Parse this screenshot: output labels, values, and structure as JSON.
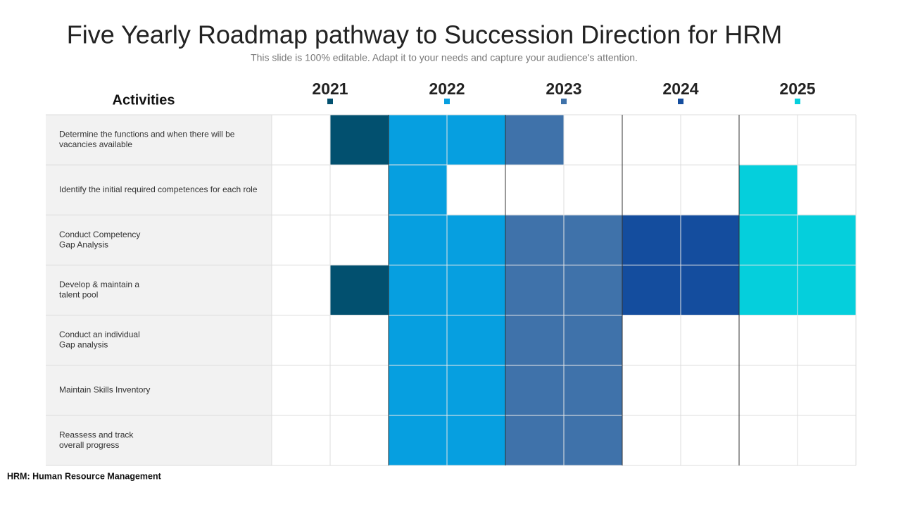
{
  "title": "Five Yearly Roadmap pathway to Succession Direction for HRM",
  "subtitle": "This slide is 100% editable. Adapt it to your needs and capture your audience's attention.",
  "activities_header": "Activities",
  "years": [
    {
      "label": "2021",
      "color": "#02506f"
    },
    {
      "label": "2022",
      "color": "#069fe0"
    },
    {
      "label": "2023",
      "color": "#3f72aa"
    },
    {
      "label": "2024",
      "color": "#144d9e"
    },
    {
      "label": "2025",
      "color": "#05cfdc"
    }
  ],
  "rows": [
    {
      "lines": [
        "Determine the functions and when there will be",
        "vacancies available"
      ]
    },
    {
      "lines": [
        "Identify the initial required competences for each role"
      ]
    },
    {
      "lines": [
        "Conduct Competency",
        "Gap Analysis"
      ]
    },
    {
      "lines": [
        "Develop & maintain a",
        "talent pool"
      ]
    },
    {
      "lines": [
        "Conduct an individual",
        "Gap analysis"
      ]
    },
    {
      "lines": [
        "Maintain Skills Inventory"
      ]
    },
    {
      "lines": [
        "Reassess and track",
        "overall progress"
      ]
    }
  ],
  "footer": "HRM:  Human Resource Management"
}
